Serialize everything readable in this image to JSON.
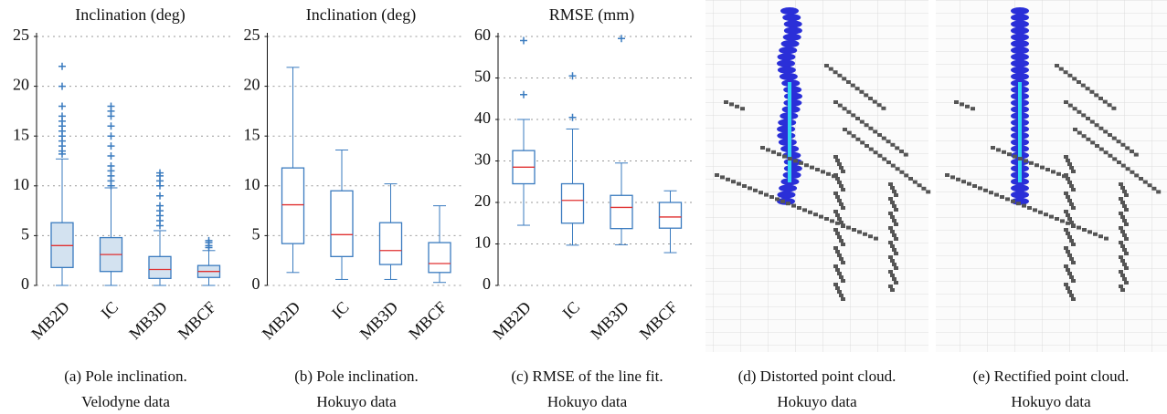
{
  "chart_data": [
    {
      "type": "box",
      "title": "Inclination (deg)",
      "caption": [
        "(a) Pole inclination.",
        "Velodyne data"
      ],
      "categories": [
        "MB2D",
        "IC",
        "MB3D",
        "MBCF"
      ],
      "color": "#3a7bbf",
      "median_color": "#e03030",
      "box_fill": "#d3e2f0",
      "ylim": [
        0,
        25
      ],
      "yticks": [
        0,
        5,
        10,
        15,
        20,
        25
      ],
      "grid": true,
      "boxes": [
        {
          "whisker_low": 0,
          "q1": 1.8,
          "median": 4.0,
          "q3": 6.3,
          "whisker_high": 12.7,
          "outliers": [
            13.2,
            13.5,
            14,
            14.5,
            15,
            15.5,
            16,
            16.5,
            17,
            18,
            20,
            22
          ]
        },
        {
          "whisker_low": 0,
          "q1": 1.4,
          "median": 3.1,
          "q3": 4.8,
          "whisker_high": 9.8,
          "outliers": [
            10,
            10.5,
            11,
            11.5,
            12,
            13,
            14,
            15,
            16,
            17,
            17.5,
            18
          ]
        },
        {
          "whisker_low": 0,
          "q1": 0.7,
          "median": 1.6,
          "q3": 2.9,
          "whisker_high": 5.5,
          "outliers": [
            6,
            6.5,
            7,
            7.5,
            8,
            9,
            10,
            10.5,
            11,
            11.3
          ]
        },
        {
          "whisker_low": 0,
          "q1": 0.8,
          "median": 1.4,
          "q3": 2.0,
          "whisker_high": 3.5,
          "outliers": [
            3.8,
            4,
            4.3,
            4.5
          ]
        }
      ]
    },
    {
      "type": "box",
      "title": "Inclination (deg)",
      "caption": [
        "(b) Pole inclination.",
        "Hokuyo data"
      ],
      "categories": [
        "MB2D",
        "IC",
        "MB3D",
        "MBCF"
      ],
      "color": "#3a7bbf",
      "median_color": "#e03030",
      "box_fill": "#ffffff",
      "ylim": [
        0,
        25
      ],
      "yticks": [
        0,
        5,
        10,
        15,
        20,
        25
      ],
      "grid": true,
      "boxes": [
        {
          "whisker_low": 1.3,
          "q1": 4.2,
          "median": 8.1,
          "q3": 11.8,
          "whisker_high": 21.9,
          "outliers": []
        },
        {
          "whisker_low": 0.6,
          "q1": 2.9,
          "median": 5.1,
          "q3": 9.5,
          "whisker_high": 13.6,
          "outliers": []
        },
        {
          "whisker_low": 0.6,
          "q1": 2.1,
          "median": 3.5,
          "q3": 6.3,
          "whisker_high": 10.2,
          "outliers": []
        },
        {
          "whisker_low": 0.3,
          "q1": 1.3,
          "median": 2.2,
          "q3": 4.3,
          "whisker_high": 8.0,
          "outliers": []
        }
      ]
    },
    {
      "type": "box",
      "title": "RMSE (mm)",
      "caption": [
        "(c) RMSE of the line fit.",
        "Hokuyo data"
      ],
      "categories": [
        "MB2D",
        "IC",
        "MB3D",
        "MBCF"
      ],
      "color": "#3a7bbf",
      "median_color": "#e03030",
      "box_fill": "#ffffff",
      "ylim": [
        0,
        60
      ],
      "yticks": [
        0,
        10,
        20,
        30,
        40,
        50,
        60
      ],
      "grid": true,
      "boxes": [
        {
          "whisker_low": 14.5,
          "q1": 24.5,
          "median": 28.5,
          "q3": 32.5,
          "whisker_high": 40,
          "outliers": [
            46,
            59
          ]
        },
        {
          "whisker_low": 9.7,
          "q1": 15,
          "median": 20.5,
          "q3": 24.5,
          "whisker_high": 37.7,
          "outliers": [
            40.5,
            50.5
          ]
        },
        {
          "whisker_low": 9.8,
          "q1": 13.7,
          "median": 18.8,
          "q3": 21.7,
          "whisker_high": 29.5,
          "outliers": [
            59.5
          ]
        },
        {
          "whisker_low": 7.9,
          "q1": 13.8,
          "median": 16.5,
          "q3": 20,
          "whisker_high": 22.8,
          "outliers": []
        }
      ]
    }
  ],
  "images": [
    {
      "caption": [
        "(d) Distorted point cloud.",
        "Hokuyo data"
      ]
    },
    {
      "caption": [
        "(e) Rectified point cloud.",
        "Hokuyo data"
      ]
    }
  ]
}
